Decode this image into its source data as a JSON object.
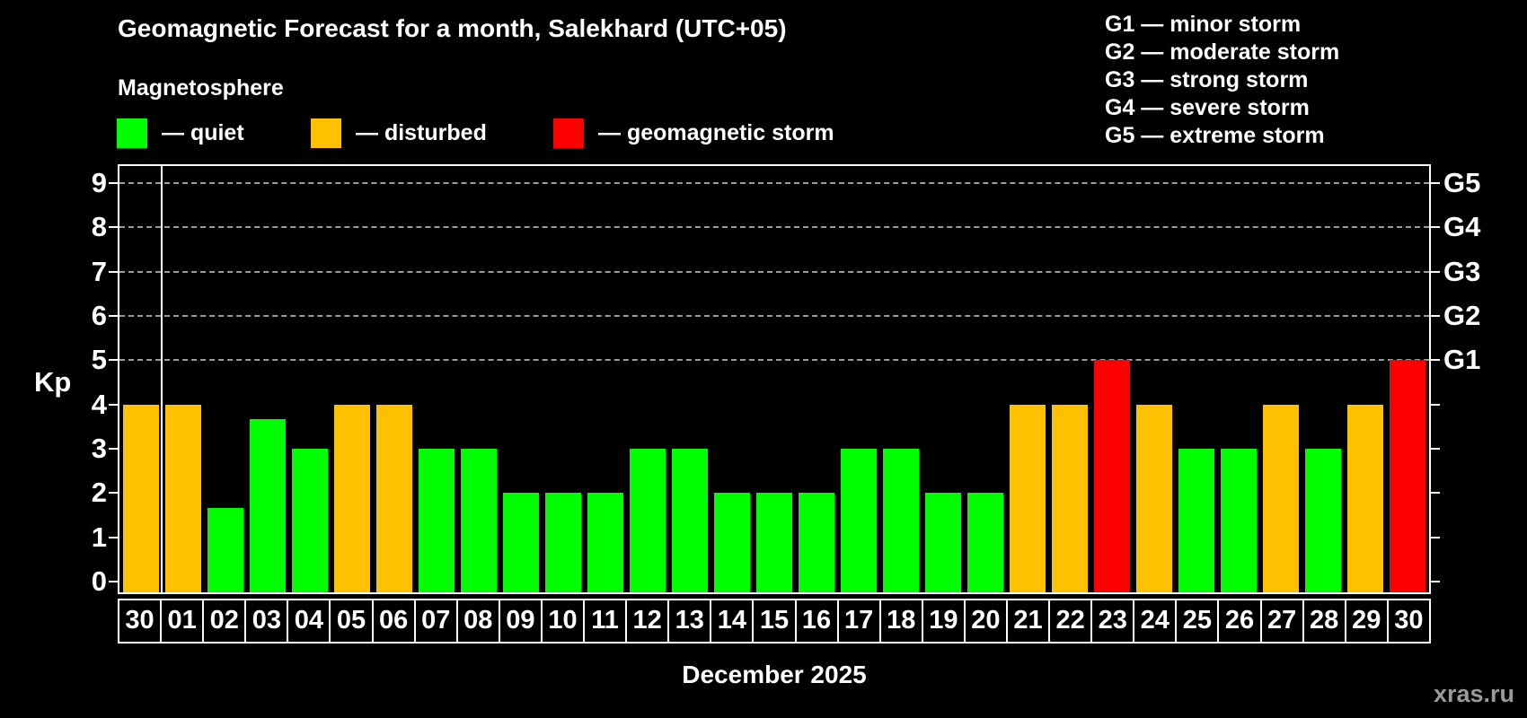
{
  "header": {
    "title": "Geomagnetic Forecast for a month, Salekhard (UTC+05)",
    "subtitle": "Magnetosphere"
  },
  "legend": {
    "items": [
      {
        "label": "— quiet",
        "status": "quiet",
        "color": "#00ff00"
      },
      {
        "label": "— disturbed",
        "status": "disturbed",
        "color": "#ffc000"
      },
      {
        "label": "— geomagnetic storm",
        "status": "storm",
        "color": "#ff0000"
      }
    ]
  },
  "g_legend": {
    "items": [
      "G1 — minor storm",
      "G2 — moderate storm",
      "G3 — strong storm",
      "G4 — severe storm",
      "G5 — extreme storm"
    ]
  },
  "axes": {
    "y_label": "Kp",
    "y_ticks": [
      0,
      1,
      2,
      3,
      4,
      5,
      6,
      7,
      8,
      9
    ],
    "x_label": "December 2025",
    "right_labels": [
      {
        "kp": 5,
        "label": "G1"
      },
      {
        "kp": 6,
        "label": "G2"
      },
      {
        "kp": 7,
        "label": "G3"
      },
      {
        "kp": 8,
        "label": "G4"
      },
      {
        "kp": 9,
        "label": "G5"
      }
    ]
  },
  "watermark": "xras.ru",
  "chart_data": {
    "type": "bar",
    "title": "Geomagnetic Forecast for a month, Salekhard (UTC+05)",
    "xlabel": "December 2025",
    "ylabel": "Kp",
    "ylim": [
      0,
      9.6
    ],
    "grid": "dashed horizontal at Kp 5-9 only",
    "legend_position": "top-left",
    "gridlines_kp": [
      5,
      6,
      7,
      8,
      9
    ],
    "month_separator_after_index": 0,
    "categories": [
      "30",
      "01",
      "02",
      "03",
      "04",
      "05",
      "06",
      "07",
      "08",
      "09",
      "10",
      "11",
      "12",
      "13",
      "14",
      "15",
      "16",
      "17",
      "18",
      "19",
      "20",
      "21",
      "22",
      "23",
      "24",
      "25",
      "26",
      "27",
      "28",
      "29",
      "30"
    ],
    "values": [
      4,
      4,
      1.67,
      3.67,
      3,
      4,
      4,
      3,
      3,
      2,
      2,
      2,
      3,
      3,
      2,
      2,
      2,
      3,
      3,
      2,
      2,
      4,
      4,
      5,
      4,
      3,
      3,
      4,
      3,
      4,
      5
    ],
    "statuses": [
      "disturbed",
      "disturbed",
      "quiet",
      "quiet",
      "quiet",
      "disturbed",
      "disturbed",
      "quiet",
      "quiet",
      "quiet",
      "quiet",
      "quiet",
      "quiet",
      "quiet",
      "quiet",
      "quiet",
      "quiet",
      "quiet",
      "quiet",
      "quiet",
      "quiet",
      "disturbed",
      "disturbed",
      "storm",
      "disturbed",
      "quiet",
      "quiet",
      "disturbed",
      "quiet",
      "disturbed",
      "storm"
    ],
    "status_colors": {
      "quiet": "#00ff00",
      "disturbed": "#ffc000",
      "storm": "#ff0000"
    }
  }
}
